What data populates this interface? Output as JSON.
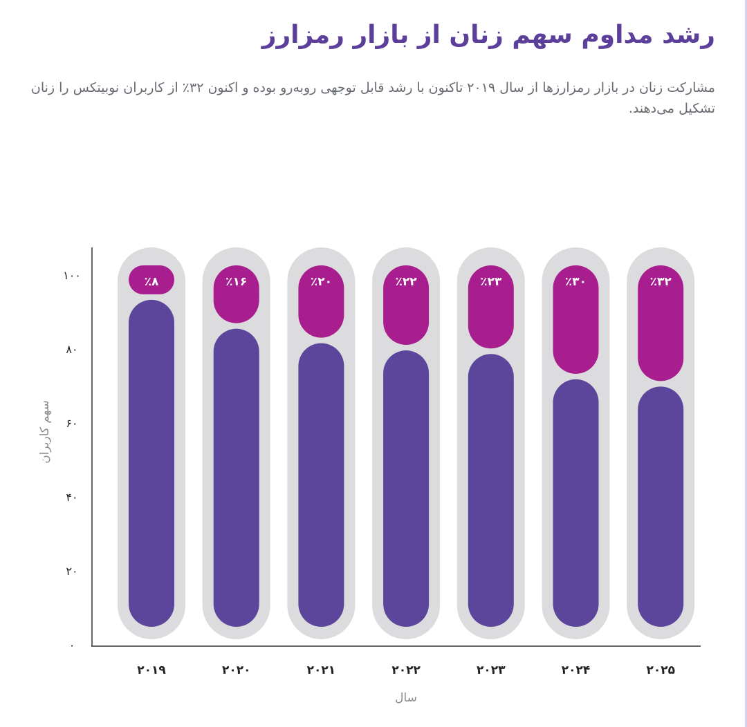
{
  "header": {
    "title": "رشد مداوم سهم زنان از بازار رمزارز",
    "subtitle": "مشارکت زنان در بازار رمزارزها از سال ۲۰۱۹ تاکنون با رشد قابل توجهی روبه‌رو بوده و اکنون ۳۲٪ از کاربران نوبیتکس را زنان تشکیل می‌دهند."
  },
  "chart_data": {
    "type": "bar",
    "stacked": true,
    "categories": [
      "۲۰۱۹",
      "۲۰۲۰",
      "۲۰۲۱",
      "۲۰۲۲",
      "۲۰۲۳",
      "۲۰۲۴",
      "۲۰۲۵"
    ],
    "series": [
      {
        "values": [
          92,
          84,
          80,
          78,
          77,
          70,
          68
        ]
      },
      {
        "values": [
          8,
          16,
          20,
          22,
          23,
          30,
          32
        ]
      }
    ],
    "data_labels": [
      "٪۸",
      "٪۱۶",
      "٪۲۰",
      "٪۲۲",
      "٪۲۳",
      "٪۳۰",
      "٪۳۲"
    ],
    "ylabel": "سهم کاربران",
    "xlabel": "سال",
    "ylim": [
      0,
      100
    ],
    "yticks": [
      "۰",
      "۲۰",
      "۴۰",
      "۶۰",
      "۸۰",
      "۱۰۰"
    ],
    "grid": false,
    "colors": {
      "track": "#dcdcde",
      "base": "#5c469c",
      "top": "#a81e8e",
      "axis": "#333333",
      "title": "#5b3f9a"
    }
  }
}
